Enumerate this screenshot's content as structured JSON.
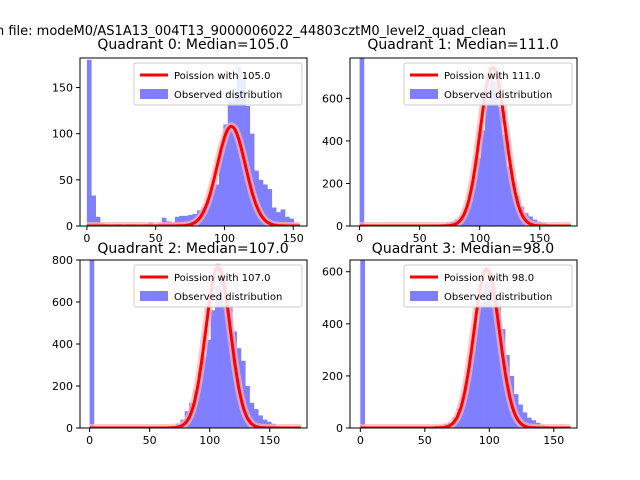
{
  "figure": {
    "suptitle": "n file: modeM0/AS1A13_004T13_9000006022_44803cztM0_level2_quad_clean"
  },
  "colors": {
    "hist": "#7f7fff",
    "fit": "#ff0000",
    "fit_fill": "#ffb3b3"
  },
  "chart_data": [
    {
      "type": "bar",
      "title": "Quadrant 0: Median=105.0",
      "xlabel": "",
      "ylabel": "",
      "xlim": [
        -5,
        160
      ],
      "ylim": [
        0,
        182
      ],
      "xticks": [
        0,
        50,
        100,
        150
      ],
      "yticks": [
        0,
        50,
        100,
        150
      ],
      "bin_width": 3.2,
      "legend": {
        "position": "top-right",
        "entries": [
          "Poission with 105.0",
          "Observed distribution"
        ]
      },
      "fit": {
        "name": "Poission with 105.0",
        "mean": 105.0,
        "peak": 108
      },
      "series": [
        {
          "name": "Observed distribution",
          "x": [
            0,
            3.2,
            6.4,
            9.6,
            12.8,
            16,
            19.2,
            22.4,
            25.6,
            28.8,
            32,
            35.2,
            38.4,
            41.6,
            44.8,
            48,
            51.2,
            54.4,
            57.6,
            60.8,
            64,
            67.2,
            70.4,
            73.6,
            76.8,
            80,
            83.2,
            86.4,
            89.6,
            92.8,
            96,
            99.2,
            102.4,
            105.6,
            108.8,
            112,
            115.2,
            118.4,
            121.6,
            124.8,
            128,
            131.2,
            134.4,
            137.6,
            140.8,
            144,
            147.2,
            150.4
          ],
          "values": [
            180,
            33,
            10,
            3,
            2,
            1,
            2,
            2,
            1,
            2,
            2,
            1,
            1,
            2,
            4,
            1,
            3,
            9,
            5,
            4,
            10,
            11,
            11,
            12,
            13,
            17,
            20,
            28,
            40,
            45,
            83,
            110,
            135,
            145,
            172,
            160,
            130,
            100,
            60,
            50,
            45,
            40,
            20,
            15,
            18,
            10,
            8,
            3
          ]
        }
      ]
    },
    {
      "type": "bar",
      "title": "Quadrant 1: Median=111.0",
      "xlabel": "",
      "ylabel": "",
      "xlim": [
        -8,
        181
      ],
      "ylim": [
        0,
        790
      ],
      "xticks": [
        0,
        50,
        100,
        150
      ],
      "yticks": [
        0,
        200,
        400,
        600
      ],
      "bin_width": 3.6,
      "legend": {
        "position": "top-right",
        "entries": [
          "Poission with 111.0",
          "Observed distribution"
        ]
      },
      "fit": {
        "name": "Poission with 111.0",
        "mean": 111.0,
        "peak": 745
      },
      "series": [
        {
          "name": "Observed distribution",
          "x": [
            0,
            3.6,
            7.2,
            10.8,
            14.4,
            18,
            21.6,
            25.2,
            28.8,
            32.4,
            36,
            39.6,
            43.2,
            46.8,
            50.4,
            54,
            57.6,
            61.2,
            64.8,
            68.4,
            72,
            75.6,
            79.2,
            82.8,
            86.4,
            90,
            93.6,
            97.2,
            100.8,
            104.4,
            108,
            111.6,
            115.2,
            118.8,
            122.4,
            126,
            129.6,
            133.2,
            136.8,
            140.4,
            144,
            147.6,
            151.2,
            154.8,
            158.4,
            162,
            165.6,
            169.2,
            172.8
          ],
          "values": [
            790,
            3,
            2,
            2,
            1,
            1,
            1,
            1,
            1,
            1,
            1,
            1,
            2,
            2,
            3,
            3,
            5,
            7,
            8,
            10,
            15,
            20,
            30,
            45,
            80,
            150,
            230,
            320,
            450,
            600,
            700,
            680,
            560,
            430,
            280,
            200,
            140,
            90,
            60,
            45,
            30,
            20,
            15,
            10,
            5,
            3,
            2,
            1,
            1
          ]
        }
      ]
    },
    {
      "type": "bar",
      "title": "Quadrant 2: Median=107.0",
      "xlabel": "",
      "ylabel": "",
      "xlim": [
        -8,
        181
      ],
      "ylim": [
        0,
        800
      ],
      "xticks": [
        0,
        50,
        100,
        150
      ],
      "yticks": [
        0,
        200,
        400,
        600,
        800
      ],
      "bin_width": 3.6,
      "legend": {
        "position": "top-right",
        "entries": [
          "Poission with 107.0",
          "Observed distribution"
        ]
      },
      "fit": {
        "name": "Poission with 107.0",
        "mean": 107.0,
        "peak": 765
      },
      "series": [
        {
          "name": "Observed distribution",
          "x": [
            0,
            3.6,
            7.2,
            10.8,
            14.4,
            18,
            21.6,
            25.2,
            28.8,
            32.4,
            36,
            39.6,
            43.2,
            46.8,
            50.4,
            54,
            57.6,
            61.2,
            64.8,
            68.4,
            72,
            75.6,
            79.2,
            82.8,
            86.4,
            90,
            93.6,
            97.2,
            100.8,
            104.4,
            108,
            111.6,
            115.2,
            118.8,
            122.4,
            126,
            129.6,
            133.2,
            136.8,
            140.4,
            144,
            147.6,
            151.2,
            154.8,
            158.4,
            162,
            165.6,
            169.2,
            172.8
          ],
          "values": [
            800,
            3,
            2,
            2,
            1,
            1,
            1,
            1,
            1,
            1,
            1,
            1,
            1,
            2,
            2,
            3,
            3,
            5,
            8,
            10,
            20,
            40,
            80,
            120,
            180,
            260,
            340,
            420,
            560,
            680,
            760,
            700,
            580,
            460,
            380,
            320,
            200,
            120,
            90,
            60,
            40,
            30,
            20,
            10,
            5,
            3,
            2,
            1,
            1
          ]
        }
      ]
    },
    {
      "type": "bar",
      "title": "Quadrant 3: Median=98.0",
      "xlabel": "",
      "ylabel": "",
      "xlim": [
        -8,
        168
      ],
      "ylim": [
        0,
        645
      ],
      "xticks": [
        0,
        50,
        100,
        150
      ],
      "yticks": [
        0,
        200,
        400,
        600
      ],
      "bin_width": 3.4,
      "legend": {
        "position": "top-right",
        "entries": [
          "Poission with 98.0",
          "Observed distribution"
        ]
      },
      "fit": {
        "name": "Poission with 98.0",
        "mean": 98.0,
        "peak": 610
      },
      "series": [
        {
          "name": "Observed distribution",
          "x": [
            0,
            3.4,
            6.8,
            10.2,
            13.6,
            17,
            20.4,
            23.8,
            27.2,
            30.6,
            34,
            37.4,
            40.8,
            44.2,
            47.6,
            51,
            54.4,
            57.8,
            61.2,
            64.6,
            68,
            71.4,
            74.8,
            78.2,
            81.6,
            85,
            88.4,
            91.8,
            95.2,
            98.6,
            102,
            105.4,
            108.8,
            112.2,
            115.6,
            119,
            122.4,
            125.8,
            129.2,
            132.6,
            136,
            139.4,
            142.8,
            146.2,
            149.6,
            153
          ],
          "values": [
            645,
            3,
            2,
            2,
            1,
            1,
            1,
            1,
            1,
            1,
            1,
            1,
            2,
            2,
            3,
            3,
            5,
            8,
            10,
            15,
            20,
            40,
            75,
            120,
            200,
            300,
            400,
            480,
            560,
            600,
            560,
            480,
            380,
            280,
            200,
            130,
            90,
            60,
            40,
            30,
            20,
            12,
            8,
            5,
            3,
            2
          ]
        }
      ]
    }
  ]
}
